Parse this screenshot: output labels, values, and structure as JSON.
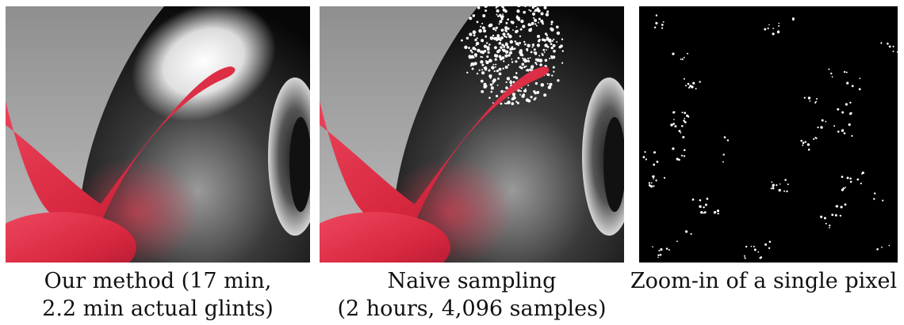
{
  "figure": {
    "panels": [
      {
        "id": "our-method",
        "caption_lines": [
          "Our method (17 min,",
          "2.2 min actual glints)"
        ]
      },
      {
        "id": "naive-sampling",
        "caption_lines": [
          "Naive sampling",
          "(2 hours, 4,096 samples)"
        ]
      },
      {
        "id": "zoom-in",
        "caption_lines": [
          "Zoom-in of a single pixel"
        ]
      }
    ],
    "colors": {
      "background_grey": "#a9a9a9",
      "shell_dark": "#0c0c0c",
      "snail_red": "#e0324c",
      "glint_white": "#ffffff",
      "zoom_background": "#000000"
    }
  }
}
